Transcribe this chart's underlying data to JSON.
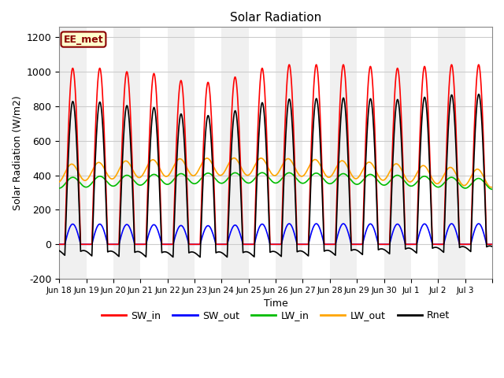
{
  "title": "Solar Radiation",
  "xlabel": "Time",
  "ylabel": "Solar Radiation (W/m2)",
  "ylim": [
    -200,
    1260
  ],
  "yticks": [
    -200,
    0,
    200,
    400,
    600,
    800,
    1000,
    1200
  ],
  "n_days": 16,
  "hours_per_day": 24,
  "dt": 0.25,
  "sw_in_peak": 1020,
  "sw_out_scale": 0.115,
  "lw_in_base": 355,
  "lw_in_amp": 30,
  "lw_out_base": 400,
  "lw_out_amp": 50,
  "rnet_night": -65,
  "colors": {
    "SW_in": "#FF0000",
    "SW_out": "#0000FF",
    "LW_in": "#00BB00",
    "LW_out": "#FFA500",
    "Rnet": "#000000"
  },
  "annotation_text": "EE_met",
  "annotation_color": "#8B0000",
  "annotation_bg": "#FFFFCC",
  "bg_colors": [
    "#F0F0F0",
    "#FFFFFF"
  ],
  "grid_color": "#CCCCCC",
  "x_tick_labels": [
    "Jun 18",
    "Jun 19",
    "Jun 20",
    "Jun 21",
    "Jun 22",
    "Jun 23",
    "Jun 24",
    "Jun 25",
    "Jun 26",
    "Jun 27",
    "Jun 28",
    "Jun 29",
    "Jun 30",
    "Jul 1",
    "Jul 2",
    "Jul 3"
  ],
  "line_width": 1.2,
  "figsize": [
    6.4,
    4.8
  ],
  "dpi": 100
}
